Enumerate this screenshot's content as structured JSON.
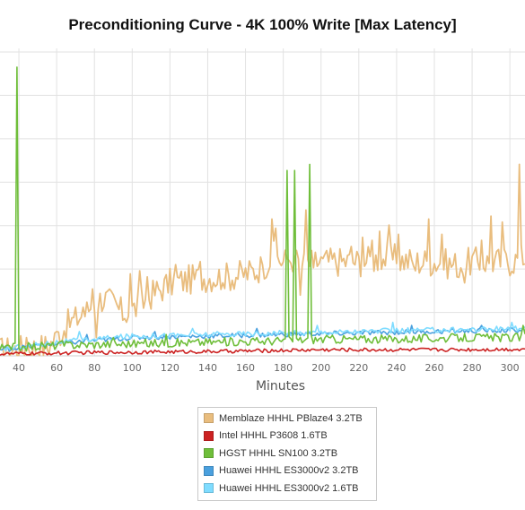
{
  "chart_data": {
    "type": "line",
    "title": "Preconditioning Curve - 4K 100% Write [Max Latency]",
    "xlabel": "Minutes",
    "ylabel": "",
    "xlim": [
      30,
      308
    ],
    "x_ticks": [
      40,
      60,
      80,
      100,
      120,
      140,
      160,
      180,
      200,
      220,
      240,
      260,
      280,
      300
    ],
    "ylim": [
      0,
      100
    ],
    "grid": true,
    "legend_position": "bottom-center",
    "series": [
      {
        "name": "Memblaze HHHL PBlaze4 3.2TB",
        "color": "#e9bd7e",
        "anchors": [
          [
            30,
            1.5
          ],
          [
            45,
            2.5
          ],
          [
            55,
            3
          ],
          [
            60,
            6
          ],
          [
            65,
            10
          ],
          [
            70,
            12
          ],
          [
            75,
            14
          ],
          [
            80,
            18
          ],
          [
            85,
            19
          ],
          [
            90,
            17
          ],
          [
            95,
            14
          ],
          [
            100,
            15
          ],
          [
            105,
            17
          ],
          [
            110,
            20
          ],
          [
            115,
            22
          ],
          [
            120,
            24
          ],
          [
            130,
            25
          ],
          [
            140,
            26
          ],
          [
            150,
            26
          ],
          [
            160,
            27
          ],
          [
            165,
            28
          ],
          [
            170,
            30
          ],
          [
            175,
            33
          ],
          [
            180,
            31
          ],
          [
            185,
            32
          ],
          [
            190,
            30
          ],
          [
            200,
            31
          ],
          [
            210,
            31
          ],
          [
            220,
            31
          ],
          [
            230,
            32
          ],
          [
            240,
            32
          ],
          [
            250,
            31
          ],
          [
            260,
            31
          ],
          [
            270,
            30
          ],
          [
            280,
            31
          ],
          [
            290,
            31
          ],
          [
            300,
            31
          ],
          [
            305,
            32
          ],
          [
            308,
            33
          ]
        ],
        "spikes": [
          [
            44,
            6
          ],
          [
            60,
            8
          ],
          [
            74,
            16
          ],
          [
            79,
            22
          ],
          [
            81,
            6
          ],
          [
            99,
            27
          ],
          [
            104,
            28
          ],
          [
            108,
            26
          ],
          [
            123,
            30
          ],
          [
            136,
            31
          ],
          [
            148,
            24
          ],
          [
            169,
            30
          ],
          [
            174,
            45
          ],
          [
            176,
            42
          ],
          [
            182,
            32
          ],
          [
            186,
            32
          ],
          [
            189,
            20
          ],
          [
            192,
            48
          ],
          [
            196,
            29
          ],
          [
            201,
            32
          ],
          [
            216,
            36
          ],
          [
            222,
            39
          ],
          [
            227,
            38
          ],
          [
            231,
            41
          ],
          [
            236,
            43
          ],
          [
            241,
            40
          ],
          [
            250,
            28
          ],
          [
            257,
            45
          ],
          [
            264,
            40
          ],
          [
            272,
            26
          ],
          [
            276,
            24
          ],
          [
            285,
            38
          ],
          [
            290,
            46
          ],
          [
            296,
            44
          ],
          [
            305,
            63
          ],
          [
            307,
            30
          ]
        ],
        "noise": 5.0
      },
      {
        "name": "Intel HHHL P3608 1.6TB",
        "color": "#cc2222",
        "anchors": [
          [
            30,
            0.6
          ],
          [
            80,
            1.1
          ],
          [
            140,
            1.4
          ],
          [
            200,
            2.0
          ],
          [
            260,
            2.0
          ],
          [
            308,
            2.2
          ]
        ],
        "spikes": [],
        "noise": 0.6
      },
      {
        "name": "HGST HHHL SN100 3.2TB",
        "color": "#6fbe3a",
        "anchors": [
          [
            30,
            2.5
          ],
          [
            60,
            3.5
          ],
          [
            100,
            4
          ],
          [
            140,
            4.5
          ],
          [
            180,
            5
          ],
          [
            200,
            5.5
          ],
          [
            240,
            5.5
          ],
          [
            280,
            6
          ],
          [
            308,
            6
          ]
        ],
        "spikes": [
          [
            36,
            2
          ],
          [
            37,
            4
          ],
          [
            39,
            95
          ],
          [
            42,
            3
          ],
          [
            63,
            5
          ],
          [
            90,
            6
          ],
          [
            118,
            7
          ],
          [
            182,
            61
          ],
          [
            186,
            61
          ],
          [
            194,
            63
          ],
          [
            307,
            10
          ]
        ],
        "noise": 1.4
      },
      {
        "name": "Huawei HHHL ES3000v2 3.2TB",
        "color": "#4aa0de",
        "anchors": [
          [
            30,
            2
          ],
          [
            60,
            4
          ],
          [
            80,
            5
          ],
          [
            100,
            6
          ],
          [
            140,
            6.5
          ],
          [
            180,
            7
          ],
          [
            220,
            7.5
          ],
          [
            260,
            8
          ],
          [
            308,
            8.5
          ]
        ],
        "spikes": [
          [
            76,
            7
          ],
          [
            112,
            8
          ],
          [
            166,
            9
          ],
          [
            248,
            10
          ],
          [
            285,
            10
          ]
        ],
        "noise": 0.8
      },
      {
        "name": "Huawei HHHL ES3000v2 1.6TB",
        "color": "#7fdcff",
        "anchors": [
          [
            30,
            2.2
          ],
          [
            60,
            4.5
          ],
          [
            80,
            5.5
          ],
          [
            100,
            6.5
          ],
          [
            140,
            7
          ],
          [
            180,
            7.5
          ],
          [
            220,
            8
          ],
          [
            260,
            8.5
          ],
          [
            308,
            9
          ]
        ],
        "spikes": [
          [
            72,
            8
          ],
          [
            132,
            9
          ],
          [
            198,
            10
          ],
          [
            238,
            11
          ],
          [
            301,
            11
          ]
        ],
        "noise": 0.9
      }
    ]
  }
}
